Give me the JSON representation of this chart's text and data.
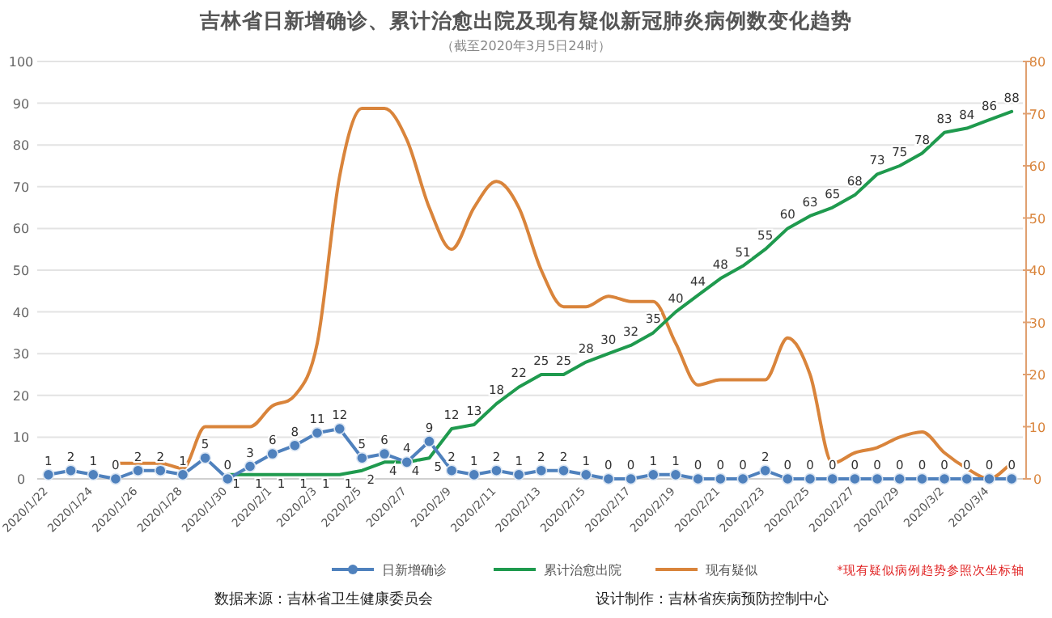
{
  "chart_data": {
    "type": "line",
    "title": "吉林省日新增确诊、累计治愈出院及现有疑似新冠肺炎病例数变化趋势",
    "subtitle": "（截至2020年3月5日24时）",
    "categories": [
      "2020/1/22",
      null,
      "2020/1/24",
      null,
      "2020/1/26",
      null,
      "2020/1/28",
      null,
      "2020/1/30",
      null,
      "2020/2/1",
      null,
      "2020/2/3",
      null,
      "2020/2/5",
      null,
      "2020/2/7",
      null,
      "2020/2/9",
      null,
      "2020/2/11",
      null,
      "2020/2/13",
      null,
      "2020/2/15",
      null,
      "2020/2/17",
      null,
      "2020/2/19",
      null,
      "2020/2/21",
      null,
      "2020/2/23",
      null,
      "2020/2/25",
      null,
      "2020/2/27",
      null,
      "2020/2/29",
      null,
      "2020/3/2",
      null,
      "2020/3/4",
      null
    ],
    "series": [
      {
        "name": "日新增确诊",
        "color": "#4f81bd",
        "marker": "circle",
        "data_labels": true,
        "values": [
          1,
          2,
          1,
          0,
          2,
          2,
          1,
          5,
          0,
          3,
          6,
          8,
          11,
          12,
          5,
          6,
          4,
          9,
          2,
          1,
          2,
          1,
          2,
          2,
          1,
          0,
          0,
          1,
          1,
          0,
          0,
          0,
          2,
          0,
          0,
          0,
          0,
          0,
          0,
          0,
          0,
          0,
          0,
          0
        ]
      },
      {
        "name": "累计治愈出院",
        "color": "#1f9a4e",
        "marker": "none",
        "data_labels": true,
        "values": [
          null,
          null,
          null,
          null,
          null,
          null,
          null,
          null,
          1,
          1,
          1,
          1,
          1,
          1,
          2,
          4,
          4,
          5,
          12,
          13,
          18,
          22,
          25,
          25,
          28,
          30,
          32,
          35,
          40,
          44,
          48,
          51,
          55,
          60,
          63,
          65,
          68,
          73,
          75,
          78,
          83,
          84,
          86,
          88
        ]
      },
      {
        "name": "现有疑似",
        "color": "#d9843b",
        "marker": "none",
        "axis": "y2",
        "data_labels": false,
        "values": [
          null,
          null,
          null,
          3,
          3,
          3,
          2,
          10,
          10,
          10,
          14,
          16,
          26,
          58,
          71,
          71,
          65,
          52,
          44,
          52,
          57,
          52,
          40,
          33,
          33,
          35,
          34,
          34,
          26,
          18,
          19,
          19,
          19,
          27,
          20,
          3,
          5,
          6,
          8,
          9,
          5,
          2,
          0,
          3
        ]
      }
    ],
    "ylim": [
      0,
      100
    ],
    "yticks": [
      0,
      10,
      20,
      30,
      40,
      50,
      60,
      70,
      80,
      90,
      100
    ],
    "y2lim": [
      0,
      80
    ],
    "y2ticks": [
      0,
      10,
      20,
      30,
      40,
      50,
      60,
      70,
      80
    ],
    "grid": "y",
    "legend": "bottom",
    "line_style": "solid",
    "annotations": [
      "*现有疑似病例趋势参照次坐标轴",
      "数据来源：吉林省卫生健康委员会",
      "设计制作：吉林省疾病预防控制中心"
    ]
  }
}
